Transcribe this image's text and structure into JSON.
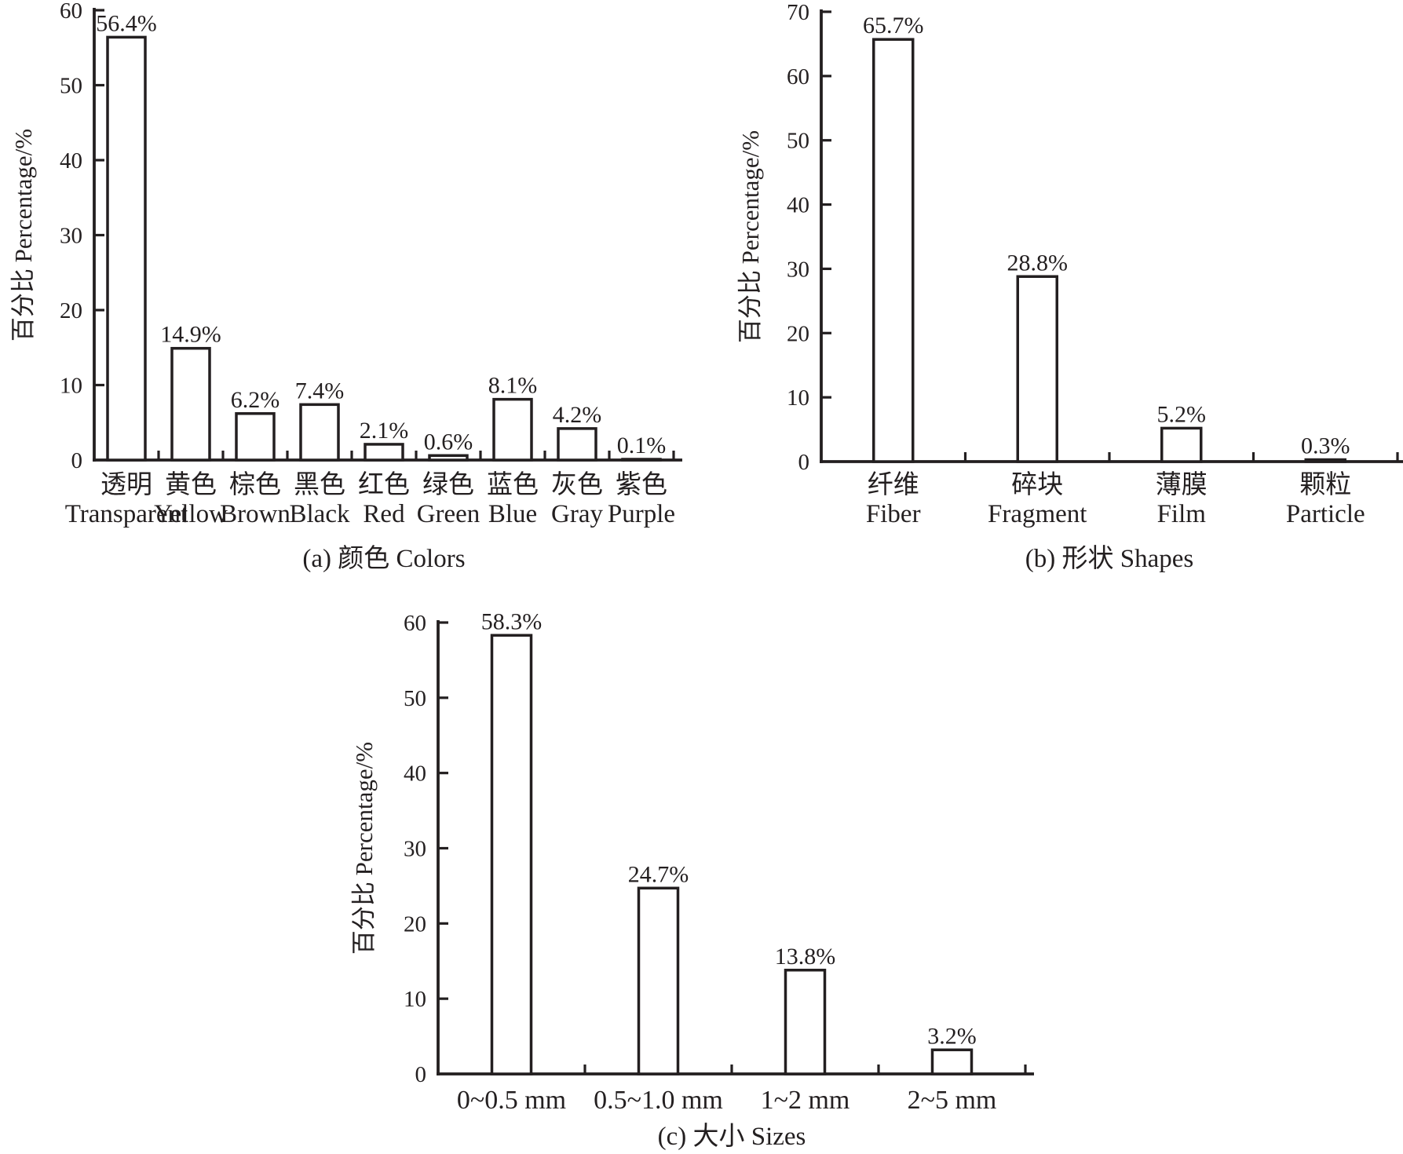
{
  "figure": {
    "background": "#ffffff",
    "ink_color": "#231f20",
    "bar_fill": "#ffffff",
    "description": "Three-panel bar chart figure: microplastic colors, shapes and sizes percentages"
  },
  "chart_data": [
    {
      "id": "colors",
      "panel": "a",
      "type": "bar",
      "caption": "(a) 颜色 Colors",
      "ylabel": "百分比 Percentage/%",
      "ylim": [
        0,
        60
      ],
      "ytick_step": 10,
      "yticks": [
        0,
        10,
        20,
        30,
        40,
        50,
        60
      ],
      "grid": false,
      "legend": null,
      "categories_zh": [
        "透明",
        "黄色",
        "棕色",
        "黑色",
        "红色",
        "绿色",
        "蓝色",
        "灰色",
        "紫色"
      ],
      "categories_en": [
        "Transparent",
        "Yellow",
        "Brown",
        "Black",
        "Red",
        "Green",
        "Blue",
        "Gray",
        "Purple"
      ],
      "values": [
        56.4,
        14.9,
        6.2,
        7.4,
        2.1,
        0.6,
        8.1,
        4.2,
        0.1
      ],
      "value_labels": [
        "56.4%",
        "14.9%",
        "6.2%",
        "7.4%",
        "2.1%",
        "0.6%",
        "8.1%",
        "4.2%",
        "0.1%"
      ]
    },
    {
      "id": "shapes",
      "panel": "b",
      "type": "bar",
      "caption": "(b) 形状 Shapes",
      "ylabel": "百分比 Percentage/%",
      "ylim": [
        0,
        70
      ],
      "ytick_step": 10,
      "yticks": [
        0,
        10,
        20,
        30,
        40,
        50,
        60,
        70
      ],
      "grid": false,
      "legend": null,
      "categories_zh": [
        "纤维",
        "碎块",
        "薄膜",
        "颗粒"
      ],
      "categories_en": [
        "Fiber",
        "Fragment",
        "Film",
        "Particle"
      ],
      "values": [
        65.7,
        28.8,
        5.2,
        0.3
      ],
      "value_labels": [
        "65.7%",
        "28.8%",
        "5.2%",
        "0.3%"
      ]
    },
    {
      "id": "sizes",
      "panel": "c",
      "type": "bar",
      "caption": "(c) 大小 Sizes",
      "ylabel": "百分比 Percentage/%",
      "ylim": [
        0,
        60
      ],
      "ytick_step": 10,
      "yticks": [
        0,
        10,
        20,
        30,
        40,
        50,
        60
      ],
      "grid": false,
      "legend": null,
      "categories": [
        "0~0.5 mm",
        "0.5~1.0 mm",
        "1~2 mm",
        "2~5 mm"
      ],
      "values": [
        58.3,
        24.7,
        13.8,
        3.2
      ],
      "value_labels": [
        "58.3%",
        "24.7%",
        "13.8%",
        "3.2%"
      ]
    }
  ]
}
